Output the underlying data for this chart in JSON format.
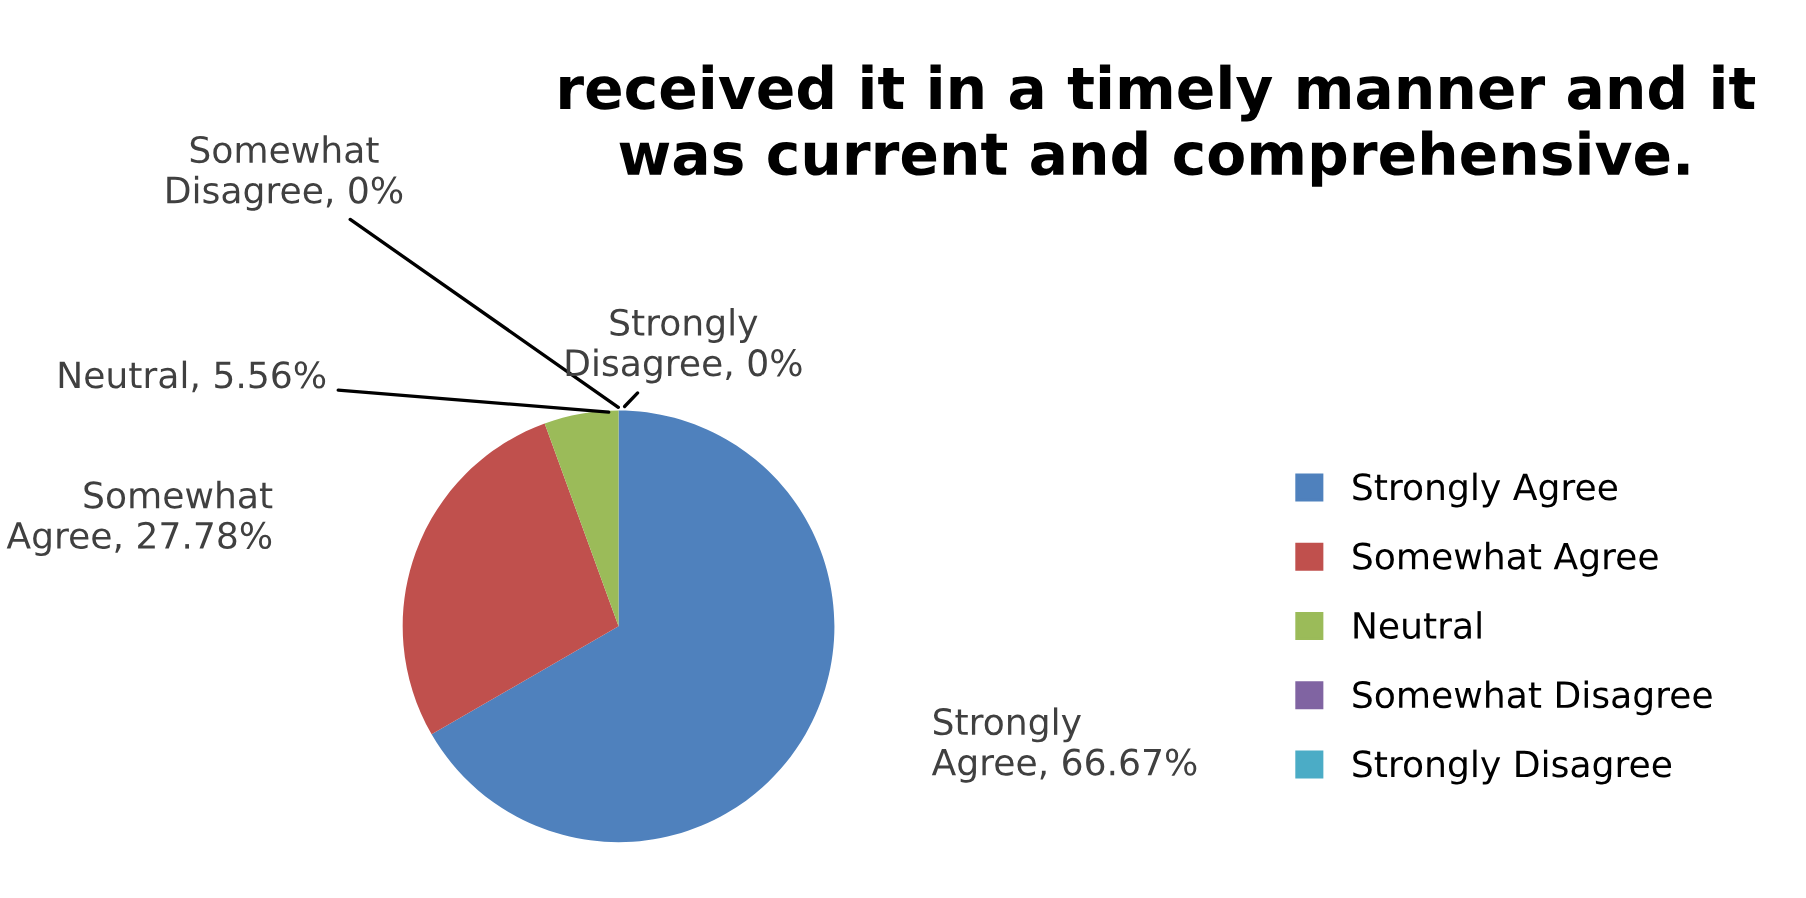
{
  "chart_data": {
    "type": "pie",
    "title": "received it in a timely manner and it was current and comprehensive.",
    "categories": [
      "Strongly Agree",
      "Somewhat Agree",
      "Neutral",
      "Somewhat Disagree",
      "Strongly Disagree"
    ],
    "values": [
      66.67,
      27.78,
      5.56,
      0,
      0
    ],
    "value_labels": [
      "Strongly Agree, 66.67%",
      "Somewhat Agree, 27.78%",
      "Neutral, 5.56%",
      "Somewhat Disagree, 0%",
      "Strongly Disagree, 0%"
    ],
    "colors": [
      "#4f81bd",
      "#c0504d",
      "#9bbb59",
      "#8064a2",
      "#4bacc6"
    ],
    "legend": "right"
  }
}
